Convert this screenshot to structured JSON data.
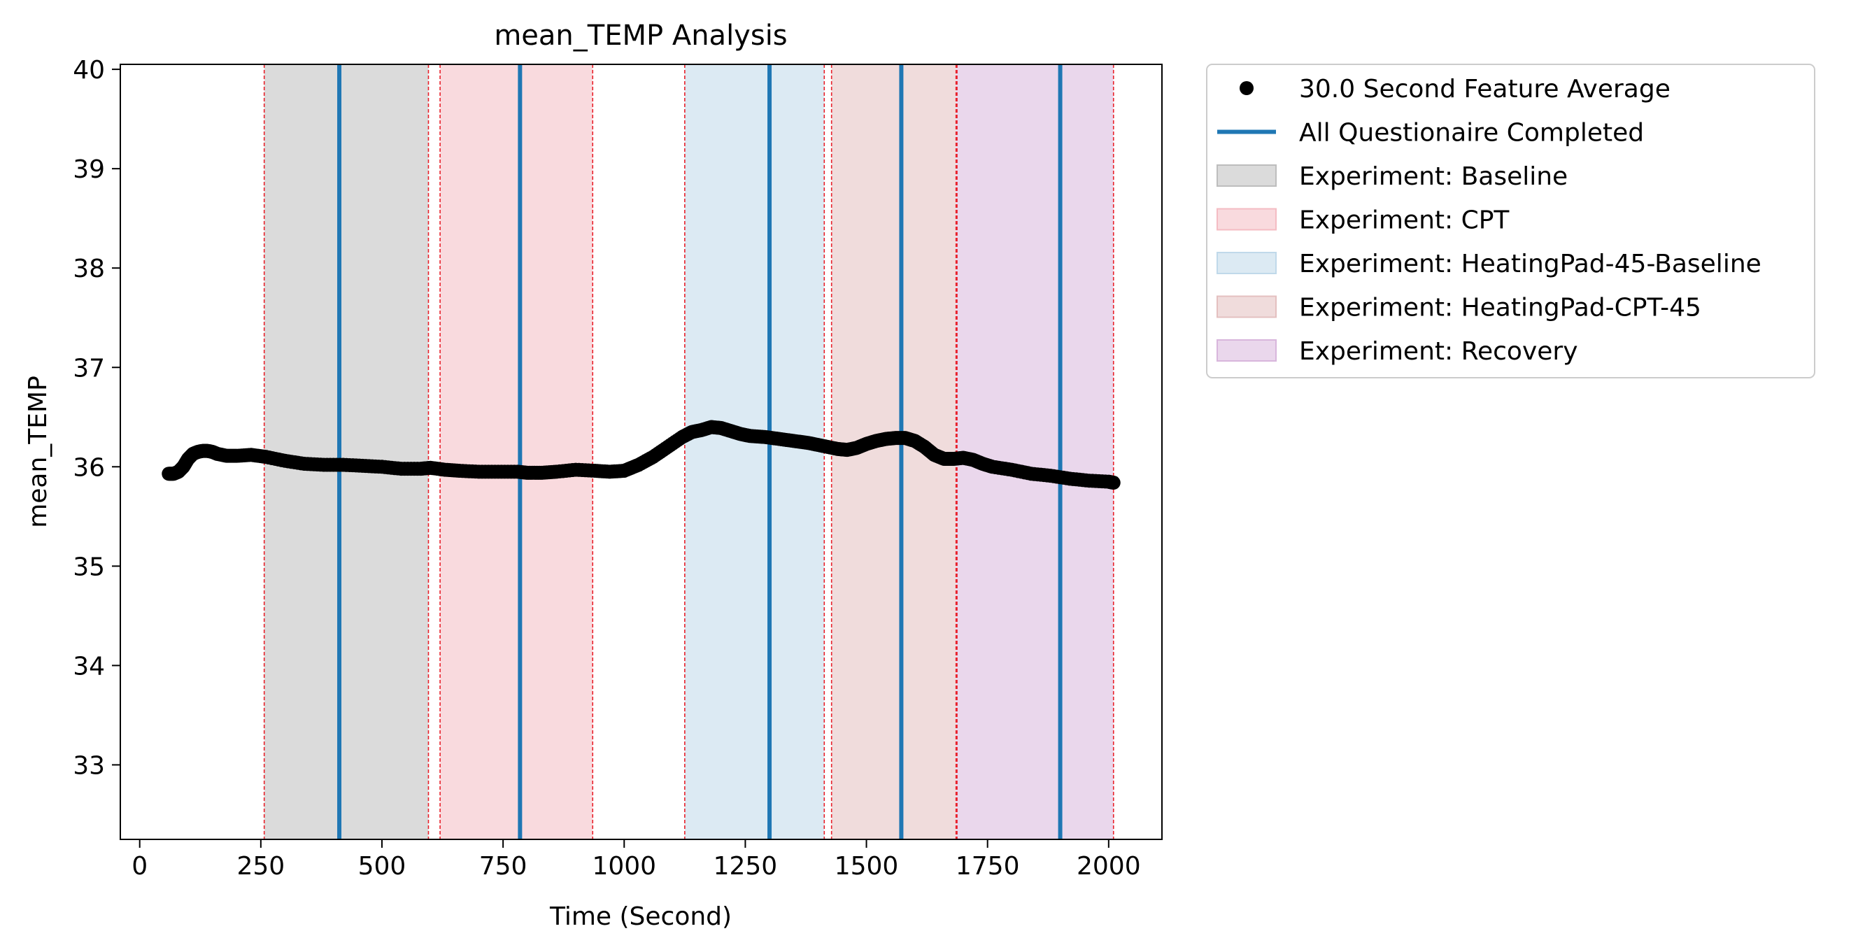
{
  "chart_data": {
    "type": "scatter",
    "title": "mean_TEMP Analysis",
    "xlabel": "Time (Second)",
    "ylabel": "mean_TEMP",
    "xlim": [
      -40,
      2110
    ],
    "ylim": [
      32.25,
      40.05
    ],
    "xticks": [
      0,
      250,
      500,
      750,
      1000,
      1250,
      1500,
      1750,
      2000
    ],
    "yticks": [
      33,
      34,
      35,
      36,
      37,
      38,
      39,
      40
    ],
    "grid": false,
    "legend_position": "outside-right-top",
    "series": [
      {
        "name": "30.0 Second Feature Average",
        "kind": "points",
        "color": "#000000",
        "x": [
          60,
          70,
          80,
          90,
          100,
          110,
          120,
          130,
          140,
          150,
          160,
          180,
          200,
          230,
          260,
          300,
          340,
          380,
          420,
          460,
          500,
          540,
          580,
          600,
          630,
          660,
          700,
          740,
          780,
          800,
          830,
          860,
          900,
          940,
          970,
          1000,
          1030,
          1060,
          1090,
          1120,
          1140,
          1160,
          1180,
          1200,
          1220,
          1240,
          1260,
          1290,
          1320,
          1350,
          1380,
          1410,
          1440,
          1460,
          1480,
          1500,
          1520,
          1540,
          1560,
          1580,
          1600,
          1620,
          1640,
          1660,
          1680,
          1700,
          1720,
          1740,
          1760,
          1800,
          1840,
          1880,
          1920,
          1960,
          2000,
          2010
        ],
        "y": [
          35.93,
          35.93,
          35.95,
          36.0,
          36.08,
          36.13,
          36.15,
          36.16,
          36.16,
          36.15,
          36.13,
          36.11,
          36.11,
          36.12,
          36.1,
          36.06,
          36.03,
          36.02,
          36.02,
          36.01,
          36.0,
          35.98,
          35.98,
          35.99,
          35.97,
          35.96,
          35.95,
          35.95,
          35.95,
          35.94,
          35.94,
          35.95,
          35.97,
          35.96,
          35.95,
          35.96,
          36.02,
          36.1,
          36.2,
          36.3,
          36.35,
          36.37,
          36.4,
          36.39,
          36.36,
          36.33,
          36.31,
          36.3,
          36.28,
          36.26,
          36.24,
          36.21,
          36.18,
          36.17,
          36.19,
          36.23,
          36.26,
          36.28,
          36.29,
          36.29,
          36.26,
          36.2,
          36.12,
          36.08,
          36.08,
          36.09,
          36.07,
          36.03,
          36.0,
          35.97,
          35.93,
          35.91,
          35.88,
          35.86,
          35.85,
          35.84
        ]
      },
      {
        "name": "All Questionaire Completed",
        "kind": "vlines",
        "color": "#1f77b4",
        "x": [
          412,
          785,
          1300,
          1572,
          1900
        ]
      }
    ],
    "bands": [
      {
        "name": "Experiment: Baseline",
        "color": "#bdbdbd",
        "ranges": [
          [
            257,
            596
          ]
        ]
      },
      {
        "name": "Experiment: CPT",
        "color": "#f4bcc3",
        "ranges": [
          [
            620,
            935
          ]
        ]
      },
      {
        "name": "Experiment: HeatingPad-45-Baseline",
        "color": "#c0d9ea",
        "ranges": [
          [
            1125,
            1413
          ]
        ]
      },
      {
        "name": "Experiment: HeatingPad-CPT-45",
        "color": "#e4c0c0",
        "ranges": [
          [
            1428,
            1685
          ]
        ]
      },
      {
        "name": "Experiment: Recovery",
        "color": "#d8b6dc",
        "ranges": [
          [
            1685,
            2010
          ]
        ]
      }
    ],
    "boundary_lines": {
      "color": "#e8202a",
      "x": [
        257,
        596,
        620,
        935,
        1125,
        1413,
        1428,
        1685,
        1687,
        2010
      ]
    }
  }
}
